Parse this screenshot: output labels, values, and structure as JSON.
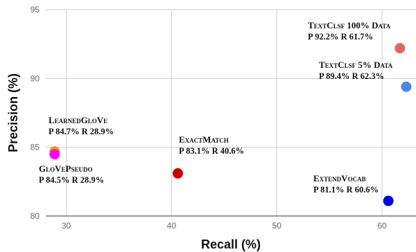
{
  "chart_data": {
    "type": "scatter",
    "title": "",
    "xlabel": "Recall (%)",
    "ylabel": "Precision (%)",
    "xlim": [
      28,
      63
    ],
    "ylim": [
      80,
      95
    ],
    "xticks": [
      "30",
      "40",
      "50",
      "60"
    ],
    "yticks": [
      "80",
      "85",
      "90",
      "95"
    ],
    "grid": true,
    "legend": "none",
    "points": [
      {
        "name": "TextClsf 100% Data",
        "label": "P 92.2% R 61.7%",
        "x": 61.7,
        "y": 92.2,
        "color": "#e06666"
      },
      {
        "name": "TextClsf 5% Data",
        "label": "P 89.4% R 62.3%",
        "x": 62.3,
        "y": 89.4,
        "color": "#4a86e8"
      },
      {
        "name": "LearnedGloVe",
        "label": "P 84.7% R 28.9%",
        "x": 28.9,
        "y": 84.7,
        "color": "#ff9900"
      },
      {
        "name": "GloVePseudo",
        "label": "P 84.5% R 28.9%",
        "x": 28.9,
        "y": 84.5,
        "color": "#ff00ff"
      },
      {
        "name": "ExactMatch",
        "label": "P 83.1% R 40.6%",
        "x": 40.6,
        "y": 83.1,
        "color": "#cc0000"
      },
      {
        "name": "ExtendVocab",
        "label": "P 81.1% R 60.6%",
        "x": 60.6,
        "y": 81.1,
        "color": "#0000ee"
      }
    ]
  }
}
